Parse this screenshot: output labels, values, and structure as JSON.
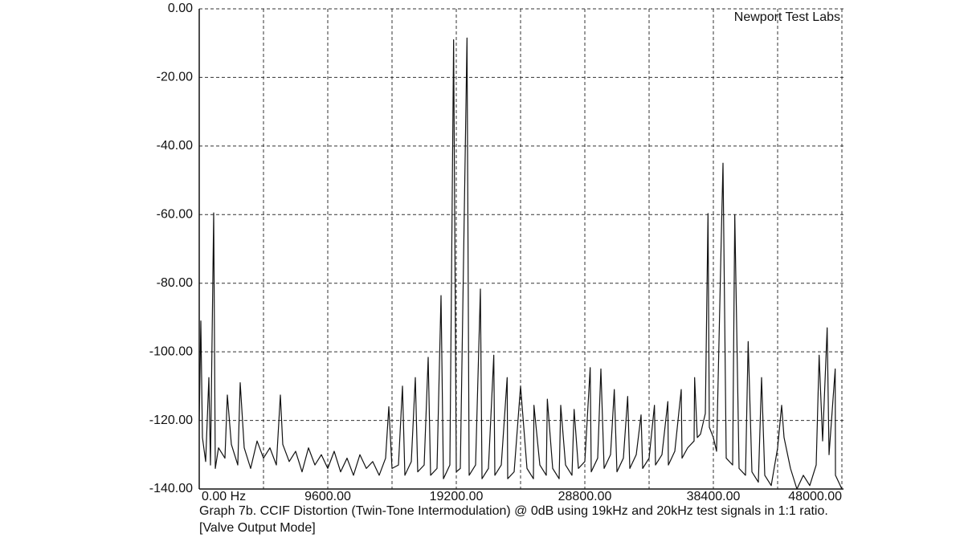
{
  "chart_data": {
    "type": "line",
    "annotation": "Newport Test Labs",
    "caption": "Graph 7b. CCIF Distortion (Twin-Tone Intermodulation) @ 0dB using 19kHz and 20kHz test signals in 1:1 ratio. [Valve Output Mode]",
    "xlim": [
      0,
      48000
    ],
    "ylim": [
      -140,
      0
    ],
    "xticks": [
      {
        "value": 0,
        "label": "0.00 Hz"
      },
      {
        "value": 9600,
        "label": "9600.00"
      },
      {
        "value": 19200,
        "label": "19200.00"
      },
      {
        "value": 28800,
        "label": "28800.00"
      },
      {
        "value": 38400,
        "label": "38400.00"
      },
      {
        "value": 48000,
        "label": "48000.00"
      }
    ],
    "xgrid": [
      4800,
      14400,
      24000,
      33600,
      43200
    ],
    "yticks": [
      {
        "value": 0,
        "label": "0.00"
      },
      {
        "value": -20,
        "label": "-20.00"
      },
      {
        "value": -40,
        "label": "-40.00"
      },
      {
        "value": -60,
        "label": "-60.00"
      },
      {
        "value": -80,
        "label": "-80.00"
      },
      {
        "value": -100,
        "label": "-100.00"
      },
      {
        "value": -120,
        "label": "-120.00"
      },
      {
        "value": -140,
        "label": "-140.00"
      }
    ],
    "grid": true,
    "x": [
      0,
      120,
      240,
      480,
      720,
      840,
      1080,
      1200,
      1440,
      1920,
      2100,
      2400,
      2880,
      3060,
      3360,
      3840,
      4320,
      4800,
      5280,
      5760,
      6060,
      6240,
      6720,
      7200,
      7680,
      8160,
      8640,
      9120,
      9600,
      10080,
      10560,
      11040,
      11520,
      12000,
      12480,
      12960,
      13440,
      13920,
      14160,
      14400,
      14880,
      15180,
      15360,
      15840,
      16140,
      16320,
      16800,
      17100,
      17280,
      17760,
      18060,
      18240,
      18720,
      19000,
      19200,
      19500,
      20000,
      20160,
      20640,
      21000,
      21120,
      21600,
      22000,
      22080,
      22560,
      23000,
      23040,
      23520,
      24000,
      24480,
      24960,
      25000,
      25440,
      25920,
      26000,
      26400,
      26880,
      27000,
      27360,
      27840,
      28000,
      28320,
      28800,
      29200,
      29280,
      29760,
      30000,
      30240,
      30720,
      31000,
      31200,
      31680,
      32000,
      32160,
      32640,
      33000,
      33120,
      33600,
      34000,
      34080,
      34560,
      35000,
      35040,
      35520,
      36000,
      36060,
      36480,
      36960,
      37000,
      37200,
      37440,
      37800,
      38000,
      38100,
      38400,
      38640,
      39000,
      39120,
      39360,
      39840,
      40000,
      40320,
      40800,
      41000,
      41280,
      41760,
      42000,
      42240,
      42720,
      43200,
      43500,
      43680,
      44160,
      44640,
      45120,
      45600,
      46080,
      46300,
      46560,
      46900,
      47040,
      47500,
      47520,
      48000
    ],
    "series": [
      {
        "color": "#111111",
        "values": [
          -120,
          -91,
          -125,
          -132,
          -107.5,
          -133,
          -59.5,
          -134,
          -128,
          -131,
          -112.6,
          -127,
          -133,
          -109,
          -128,
          -134,
          -126,
          -131,
          -128,
          -133,
          -112.6,
          -127,
          -132,
          -129,
          -135,
          -128,
          -133,
          -130,
          -134,
          -129,
          -135,
          -131,
          -136,
          -130,
          -134,
          -132,
          -136,
          -131,
          -116,
          -134,
          -133,
          -110,
          -136,
          -132,
          -107.5,
          -135,
          -133,
          -101.6,
          -136,
          -134,
          -83.6,
          -137,
          -133,
          -9,
          -135,
          -134,
          -8.5,
          -136,
          -133,
          -81.7,
          -137,
          -134,
          -101,
          -136,
          -133,
          -107.5,
          -137,
          -135,
          -110,
          -134,
          -137,
          -115.6,
          -133,
          -136,
          -113.8,
          -134,
          -137,
          -115.6,
          -133,
          -136,
          -116.8,
          -134,
          -132,
          -104.6,
          -135,
          -131,
          -105,
          -134,
          -130,
          -111,
          -135,
          -131,
          -113,
          -134,
          -130,
          -118.4,
          -134,
          -131,
          -115.6,
          -133,
          -130,
          -114.5,
          -133,
          -129,
          -111,
          -131,
          -128,
          -126,
          -107.5,
          -125,
          -124,
          -118,
          -59.7,
          -122,
          -125,
          -129,
          -65.3,
          -45,
          -131,
          -133,
          -60,
          -134,
          -136,
          -97,
          -135,
          -138,
          -107.5,
          -136,
          -139,
          -128,
          -115.6,
          -125,
          -134,
          -140,
          -136,
          -139,
          -133,
          -101,
          -126,
          -93,
          -130,
          -105,
          -136,
          -140
        ]
      }
    ]
  }
}
